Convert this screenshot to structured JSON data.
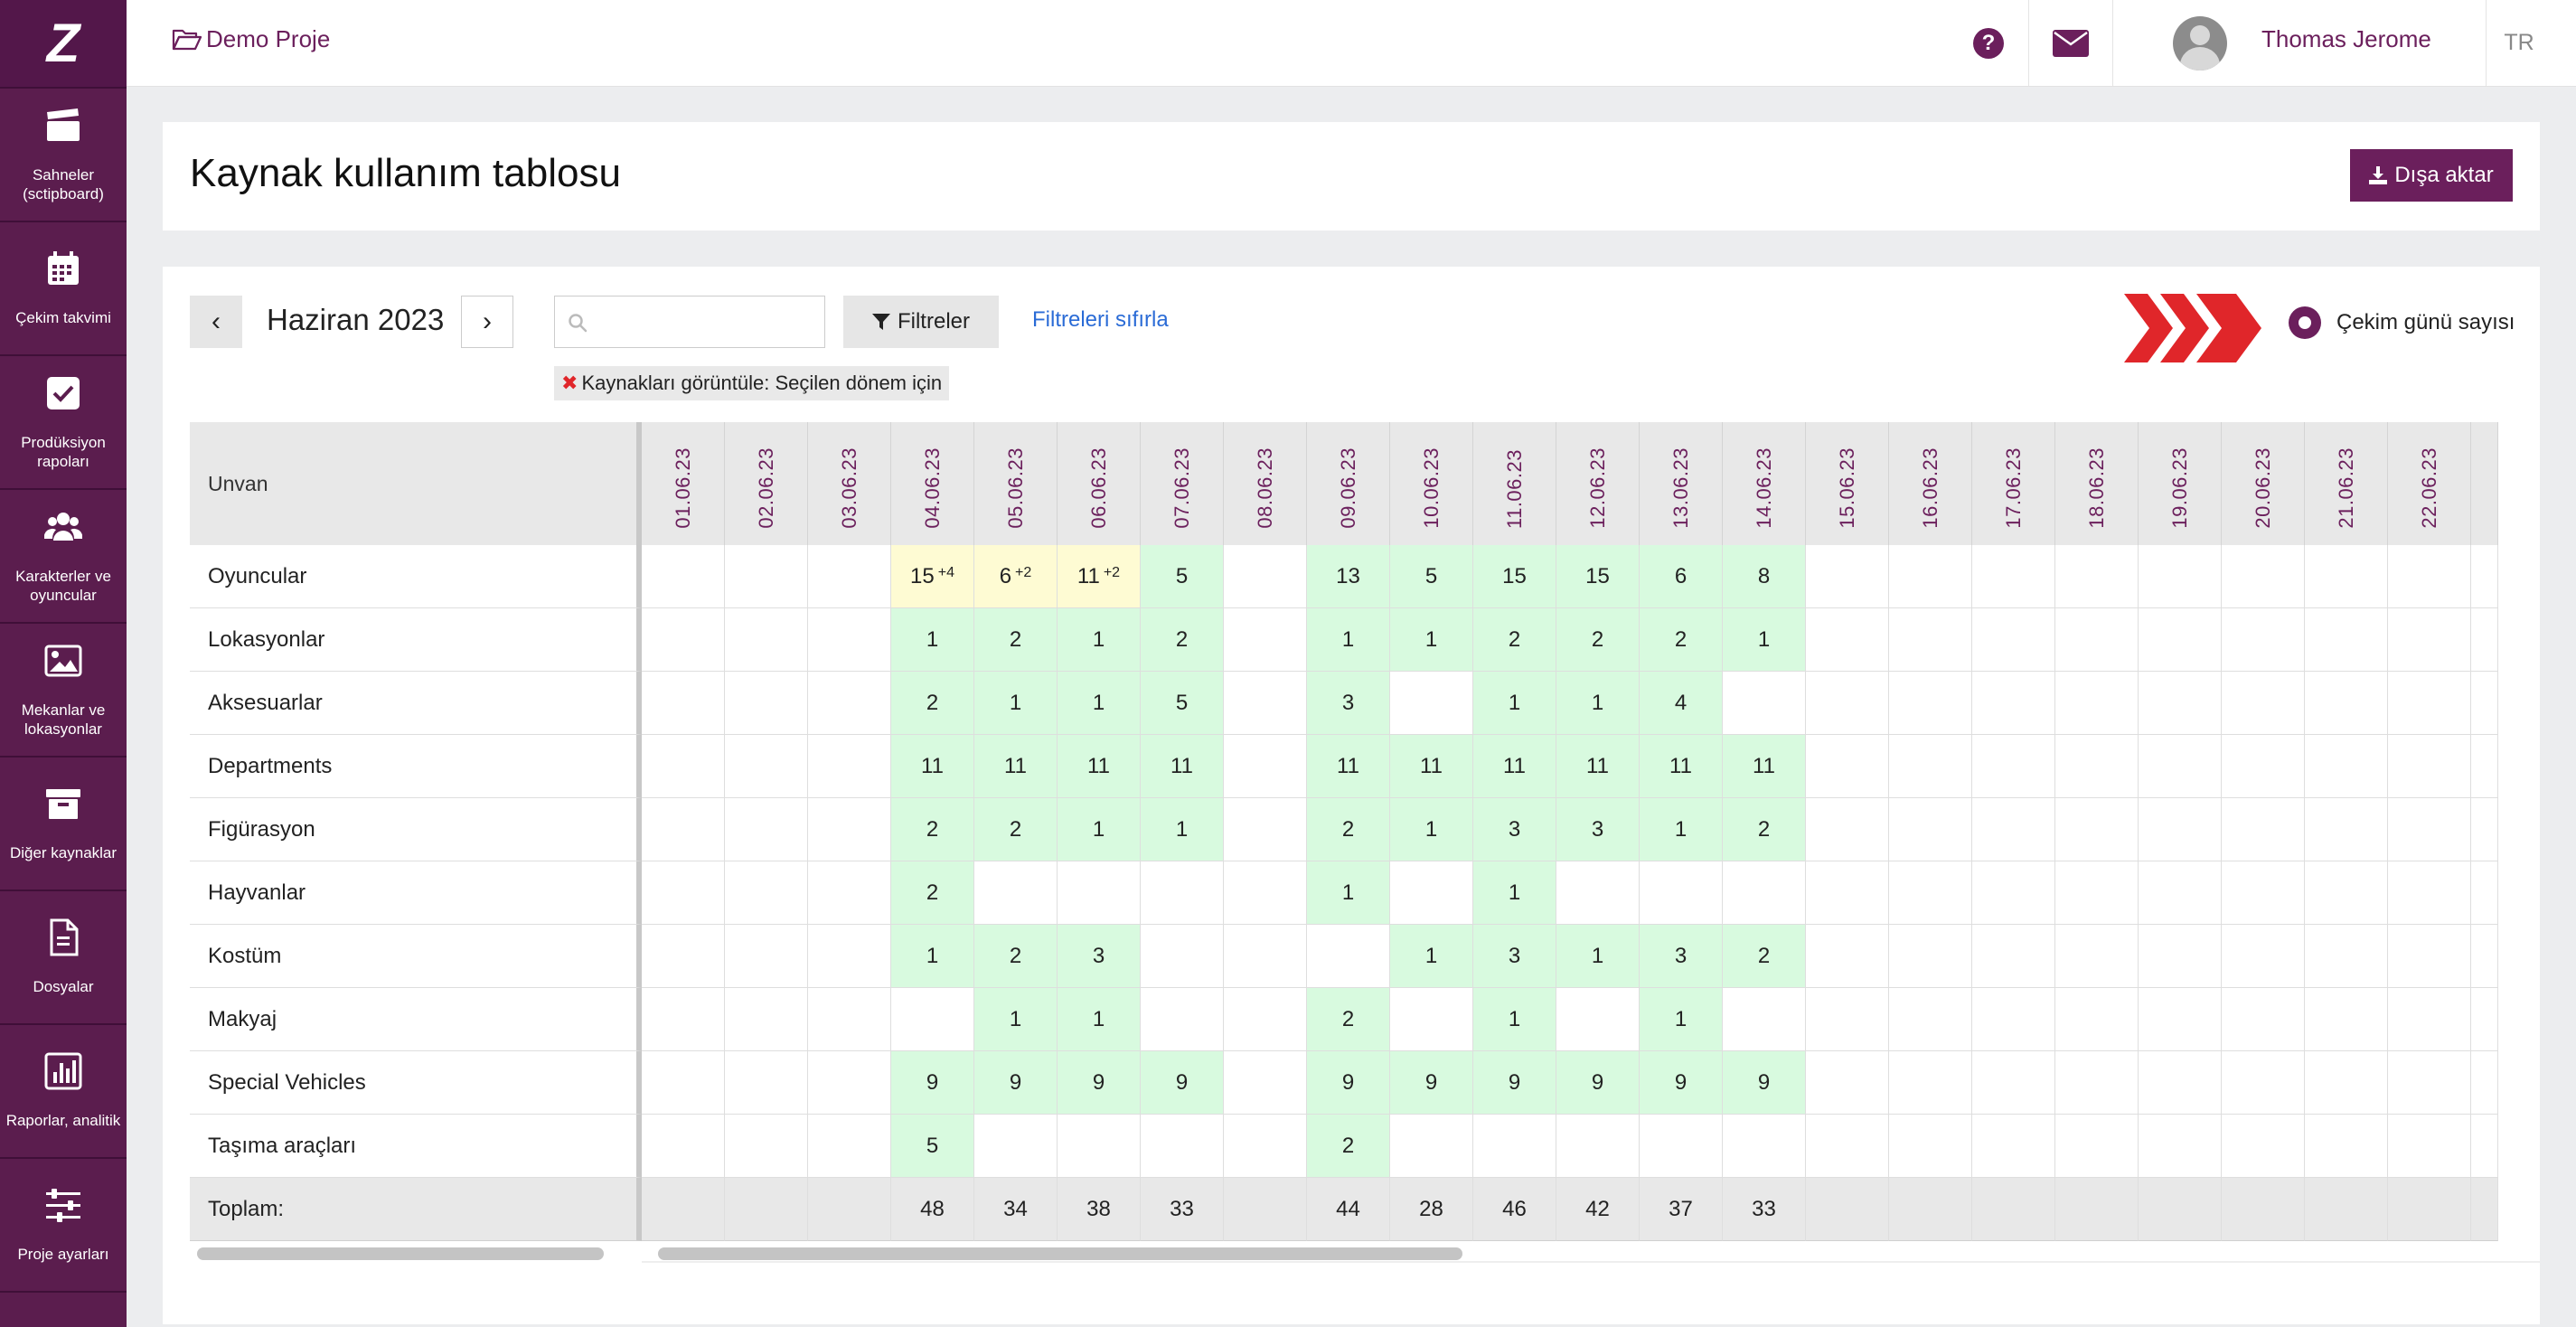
{
  "sidebar": {
    "logo": "Z",
    "items": [
      {
        "label": "Sahneler\n(sctipboard)",
        "icon": "clapperboard-icon"
      },
      {
        "label": "Çekim takvimi",
        "icon": "calendar-icon"
      },
      {
        "label": "Prodüksiyon\nrapoları",
        "icon": "checkbox-icon"
      },
      {
        "label": "Karakterler ve\noyuncular",
        "icon": "users-icon"
      },
      {
        "label": "Mekanlar ve\nlokasyonlar",
        "icon": "image-icon"
      },
      {
        "label": "Diğer kaynaklar",
        "icon": "archive-box-icon"
      },
      {
        "label": "Dosyalar",
        "icon": "document-icon"
      },
      {
        "label": "Raporlar, analitik",
        "icon": "bar-chart-icon"
      },
      {
        "label": "Proje ayarları",
        "icon": "sliders-icon"
      }
    ]
  },
  "topbar": {
    "project_name": "Demo Proje",
    "help_glyph": "?",
    "user_name": "Thomas Jerome",
    "language": "TR"
  },
  "page": {
    "title": "Kaynak kullanım tablosu",
    "export_label": "Dışa aktar"
  },
  "toolbar": {
    "prev_glyph": "‹",
    "next_glyph": "›",
    "month": "Haziran 2023",
    "search_value": "",
    "search_placeholder": "",
    "filter_label": "Filtreler",
    "reset_label": "Filtreleri sıfırla",
    "chip_remove": "✖",
    "chip_label": "Kaynakları görüntüle:",
    "chip_value": "Seçilen dönem için",
    "radio_label": "Çekim günü sayısı",
    "accent_color": "#6b1f5c",
    "chevron_color": "#e0262a"
  },
  "table": {
    "header_label": "Unvan",
    "dates": [
      "01.06.23",
      "02.06.23",
      "03.06.23",
      "04.06.23",
      "05.06.23",
      "06.06.23",
      "07.06.23",
      "08.06.23",
      "09.06.23",
      "10.06.23",
      "11.06.23",
      "12.06.23",
      "13.06.23",
      "14.06.23",
      "15.06.23",
      "16.06.23",
      "17.06.23",
      "18.06.23",
      "19.06.23",
      "20.06.23",
      "21.06.23",
      "22.06.23"
    ],
    "rows": [
      {
        "label": "Oyuncular",
        "cells": [
          {
            "v": ""
          },
          {
            "v": ""
          },
          {
            "v": ""
          },
          {
            "v": "15",
            "s": "+4",
            "c": "y"
          },
          {
            "v": "6",
            "s": "+2",
            "c": "y"
          },
          {
            "v": "11",
            "s": "+2",
            "c": "y"
          },
          {
            "v": "5",
            "c": "g"
          },
          {
            "v": ""
          },
          {
            "v": "13",
            "c": "g"
          },
          {
            "v": "5",
            "c": "g"
          },
          {
            "v": "15",
            "c": "g"
          },
          {
            "v": "15",
            "c": "g"
          },
          {
            "v": "6",
            "c": "g"
          },
          {
            "v": "8",
            "c": "g"
          },
          {
            "v": ""
          },
          {
            "v": ""
          },
          {
            "v": ""
          },
          {
            "v": ""
          },
          {
            "v": ""
          },
          {
            "v": ""
          },
          {
            "v": ""
          },
          {
            "v": ""
          }
        ]
      },
      {
        "label": "Lokasyonlar",
        "cells": [
          {
            "v": ""
          },
          {
            "v": ""
          },
          {
            "v": ""
          },
          {
            "v": "1",
            "c": "g"
          },
          {
            "v": "2",
            "c": "g"
          },
          {
            "v": "1",
            "c": "g"
          },
          {
            "v": "2",
            "c": "g"
          },
          {
            "v": ""
          },
          {
            "v": "1",
            "c": "g"
          },
          {
            "v": "1",
            "c": "g"
          },
          {
            "v": "2",
            "c": "g"
          },
          {
            "v": "2",
            "c": "g"
          },
          {
            "v": "2",
            "c": "g"
          },
          {
            "v": "1",
            "c": "g"
          },
          {
            "v": ""
          },
          {
            "v": ""
          },
          {
            "v": ""
          },
          {
            "v": ""
          },
          {
            "v": ""
          },
          {
            "v": ""
          },
          {
            "v": ""
          },
          {
            "v": ""
          }
        ]
      },
      {
        "label": "Aksesuarlar",
        "cells": [
          {
            "v": ""
          },
          {
            "v": ""
          },
          {
            "v": ""
          },
          {
            "v": "2",
            "c": "g"
          },
          {
            "v": "1",
            "c": "g"
          },
          {
            "v": "1",
            "c": "g"
          },
          {
            "v": "5",
            "c": "g"
          },
          {
            "v": ""
          },
          {
            "v": "3",
            "c": "g"
          },
          {
            "v": ""
          },
          {
            "v": "1",
            "c": "g"
          },
          {
            "v": "1",
            "c": "g"
          },
          {
            "v": "4",
            "c": "g"
          },
          {
            "v": ""
          },
          {
            "v": ""
          },
          {
            "v": ""
          },
          {
            "v": ""
          },
          {
            "v": ""
          },
          {
            "v": ""
          },
          {
            "v": ""
          },
          {
            "v": ""
          },
          {
            "v": ""
          }
        ]
      },
      {
        "label": "Departments",
        "cells": [
          {
            "v": ""
          },
          {
            "v": ""
          },
          {
            "v": ""
          },
          {
            "v": "11",
            "c": "g"
          },
          {
            "v": "11",
            "c": "g"
          },
          {
            "v": "11",
            "c": "g"
          },
          {
            "v": "11",
            "c": "g"
          },
          {
            "v": ""
          },
          {
            "v": "11",
            "c": "g"
          },
          {
            "v": "11",
            "c": "g"
          },
          {
            "v": "11",
            "c": "g"
          },
          {
            "v": "11",
            "c": "g"
          },
          {
            "v": "11",
            "c": "g"
          },
          {
            "v": "11",
            "c": "g"
          },
          {
            "v": ""
          },
          {
            "v": ""
          },
          {
            "v": ""
          },
          {
            "v": ""
          },
          {
            "v": ""
          },
          {
            "v": ""
          },
          {
            "v": ""
          },
          {
            "v": ""
          }
        ]
      },
      {
        "label": "Figürasyon",
        "cells": [
          {
            "v": ""
          },
          {
            "v": ""
          },
          {
            "v": ""
          },
          {
            "v": "2",
            "c": "g"
          },
          {
            "v": "2",
            "c": "g"
          },
          {
            "v": "1",
            "c": "g"
          },
          {
            "v": "1",
            "c": "g"
          },
          {
            "v": ""
          },
          {
            "v": "2",
            "c": "g"
          },
          {
            "v": "1",
            "c": "g"
          },
          {
            "v": "3",
            "c": "g"
          },
          {
            "v": "3",
            "c": "g"
          },
          {
            "v": "1",
            "c": "g"
          },
          {
            "v": "2",
            "c": "g"
          },
          {
            "v": ""
          },
          {
            "v": ""
          },
          {
            "v": ""
          },
          {
            "v": ""
          },
          {
            "v": ""
          },
          {
            "v": ""
          },
          {
            "v": ""
          },
          {
            "v": ""
          }
        ]
      },
      {
        "label": "Hayvanlar",
        "cells": [
          {
            "v": ""
          },
          {
            "v": ""
          },
          {
            "v": ""
          },
          {
            "v": "2",
            "c": "g"
          },
          {
            "v": ""
          },
          {
            "v": ""
          },
          {
            "v": ""
          },
          {
            "v": ""
          },
          {
            "v": "1",
            "c": "g"
          },
          {
            "v": ""
          },
          {
            "v": "1",
            "c": "g"
          },
          {
            "v": ""
          },
          {
            "v": ""
          },
          {
            "v": ""
          },
          {
            "v": ""
          },
          {
            "v": ""
          },
          {
            "v": ""
          },
          {
            "v": ""
          },
          {
            "v": ""
          },
          {
            "v": ""
          },
          {
            "v": ""
          },
          {
            "v": ""
          }
        ]
      },
      {
        "label": "Kostüm",
        "cells": [
          {
            "v": ""
          },
          {
            "v": ""
          },
          {
            "v": ""
          },
          {
            "v": "1",
            "c": "g"
          },
          {
            "v": "2",
            "c": "g"
          },
          {
            "v": "3",
            "c": "g"
          },
          {
            "v": ""
          },
          {
            "v": ""
          },
          {
            "v": ""
          },
          {
            "v": "1",
            "c": "g"
          },
          {
            "v": "3",
            "c": "g"
          },
          {
            "v": "1",
            "c": "g"
          },
          {
            "v": "3",
            "c": "g"
          },
          {
            "v": "2",
            "c": "g"
          },
          {
            "v": ""
          },
          {
            "v": ""
          },
          {
            "v": ""
          },
          {
            "v": ""
          },
          {
            "v": ""
          },
          {
            "v": ""
          },
          {
            "v": ""
          },
          {
            "v": ""
          }
        ]
      },
      {
        "label": "Makyaj",
        "cells": [
          {
            "v": ""
          },
          {
            "v": ""
          },
          {
            "v": ""
          },
          {
            "v": ""
          },
          {
            "v": "1",
            "c": "g"
          },
          {
            "v": "1",
            "c": "g"
          },
          {
            "v": ""
          },
          {
            "v": ""
          },
          {
            "v": "2",
            "c": "g"
          },
          {
            "v": ""
          },
          {
            "v": "1",
            "c": "g"
          },
          {
            "v": ""
          },
          {
            "v": "1",
            "c": "g"
          },
          {
            "v": ""
          },
          {
            "v": ""
          },
          {
            "v": ""
          },
          {
            "v": ""
          },
          {
            "v": ""
          },
          {
            "v": ""
          },
          {
            "v": ""
          },
          {
            "v": ""
          },
          {
            "v": ""
          }
        ]
      },
      {
        "label": "Special Vehicles",
        "cells": [
          {
            "v": ""
          },
          {
            "v": ""
          },
          {
            "v": ""
          },
          {
            "v": "9",
            "c": "g"
          },
          {
            "v": "9",
            "c": "g"
          },
          {
            "v": "9",
            "c": "g"
          },
          {
            "v": "9",
            "c": "g"
          },
          {
            "v": ""
          },
          {
            "v": "9",
            "c": "g"
          },
          {
            "v": "9",
            "c": "g"
          },
          {
            "v": "9",
            "c": "g"
          },
          {
            "v": "9",
            "c": "g"
          },
          {
            "v": "9",
            "c": "g"
          },
          {
            "v": "9",
            "c": "g"
          },
          {
            "v": ""
          },
          {
            "v": ""
          },
          {
            "v": ""
          },
          {
            "v": ""
          },
          {
            "v": ""
          },
          {
            "v": ""
          },
          {
            "v": ""
          },
          {
            "v": ""
          }
        ]
      },
      {
        "label": "Taşıma araçları",
        "cells": [
          {
            "v": ""
          },
          {
            "v": ""
          },
          {
            "v": ""
          },
          {
            "v": "5",
            "c": "g"
          },
          {
            "v": ""
          },
          {
            "v": ""
          },
          {
            "v": ""
          },
          {
            "v": ""
          },
          {
            "v": "2",
            "c": "g"
          },
          {
            "v": ""
          },
          {
            "v": ""
          },
          {
            "v": ""
          },
          {
            "v": ""
          },
          {
            "v": ""
          },
          {
            "v": ""
          },
          {
            "v": ""
          },
          {
            "v": ""
          },
          {
            "v": ""
          },
          {
            "v": ""
          },
          {
            "v": ""
          },
          {
            "v": ""
          },
          {
            "v": ""
          }
        ]
      }
    ],
    "total_label": "Toplam:",
    "totals": [
      "",
      "",
      "",
      "48",
      "34",
      "38",
      "33",
      "",
      "44",
      "28",
      "46",
      "42",
      "37",
      "33",
      "",
      "",
      "",
      "",
      "",
      "",
      "",
      ""
    ]
  }
}
